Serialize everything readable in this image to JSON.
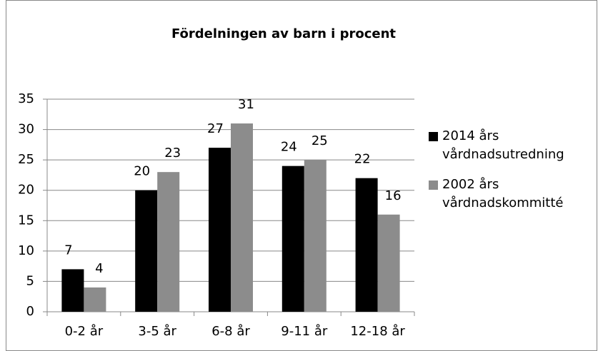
{
  "chart_data": {
    "type": "bar",
    "title": "Fördelningen av barn i procent",
    "categories": [
      "0-2 år",
      "3-5 år",
      "6-8 år",
      "9-11 år",
      "12-18 år"
    ],
    "series": [
      {
        "name": "2014 års vårdnadsutredning",
        "color": "#000000",
        "values": [
          7,
          20,
          27,
          24,
          22
        ]
      },
      {
        "name": "2002 års vårdnadskommitté",
        "color": "#8c8c8c",
        "values": [
          4,
          23,
          31,
          25,
          16
        ]
      }
    ],
    "ylim": [
      0,
      35
    ],
    "yticks": [
      0,
      5,
      10,
      15,
      20,
      25,
      30,
      35
    ],
    "grid": true,
    "legend": "right"
  }
}
